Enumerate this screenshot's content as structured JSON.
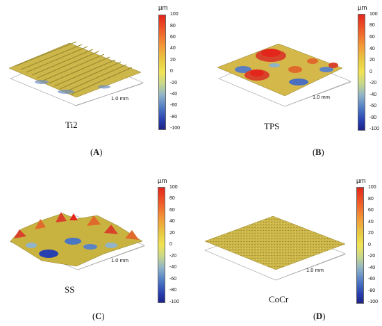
{
  "panels": [
    {
      "id": "A",
      "sample": "Ti2",
      "letter_open": "(",
      "letter": "A",
      "letter_close": ")",
      "unit": "µm",
      "scale_label": "1.0 mm",
      "ticks": [
        "100",
        "80",
        "60",
        "40",
        "20",
        "0",
        "-20",
        "-40",
        "-60",
        "-80",
        "-100"
      ]
    },
    {
      "id": "B",
      "sample": "TPS",
      "letter_open": "(",
      "letter": "B",
      "letter_close": ")",
      "unit": "µm",
      "scale_label": "1.0 mm",
      "ticks": [
        "100",
        "80",
        "60",
        "40",
        "20",
        "0",
        "-20",
        "-40",
        "-60",
        "-80",
        "-100"
      ]
    },
    {
      "id": "C",
      "sample": "SS",
      "letter_open": "(",
      "letter": "C",
      "letter_close": ")",
      "unit": "µm",
      "scale_label": "1.0 mm",
      "ticks": [
        "100",
        "80",
        "60",
        "40",
        "20",
        "0",
        "-20",
        "-40",
        "-60",
        "-80",
        "-100"
      ]
    },
    {
      "id": "D",
      "sample": "CoCr",
      "letter_open": "(",
      "letter": "D",
      "letter_close": ")",
      "unit": "µm",
      "scale_label": "1.0 mm",
      "ticks": [
        "100",
        "80",
        "60",
        "40",
        "20",
        "0",
        "-20",
        "-40",
        "-60",
        "-80",
        "-100"
      ]
    }
  ],
  "colors": {
    "colorbar_top": "#e3261c",
    "colorbar_mid": "#f0e455",
    "colorbar_bottom": "#1d2387",
    "surface_base": "#c9b340"
  }
}
